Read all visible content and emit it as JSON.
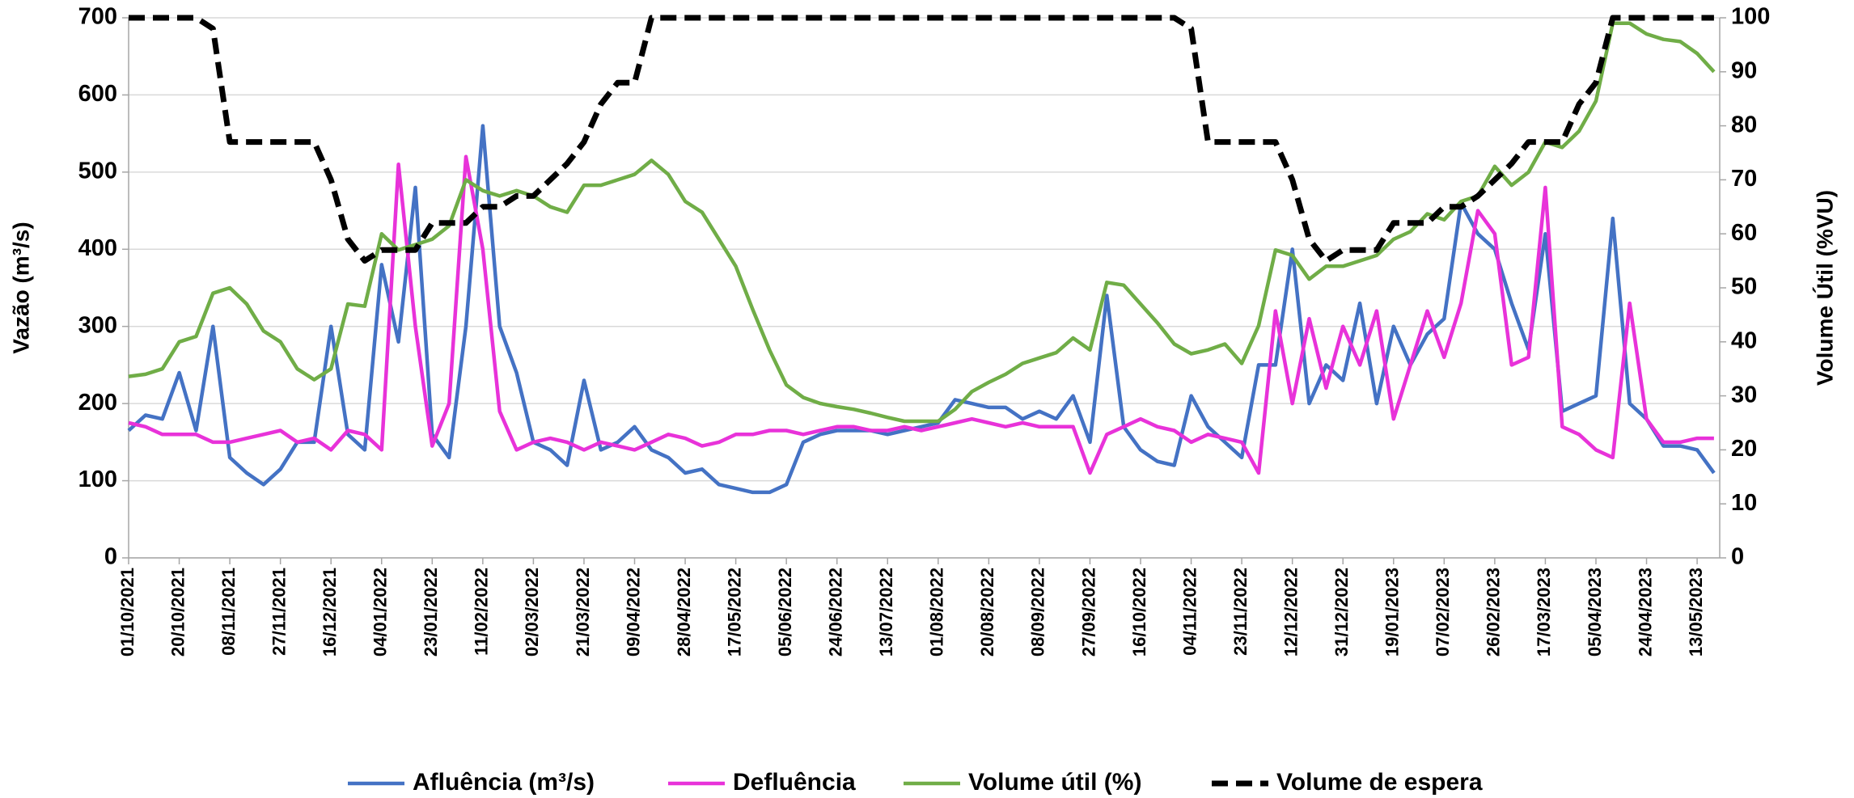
{
  "chart_data": {
    "type": "line",
    "categories": [
      "01/10/2021",
      null,
      null,
      "20/10/2021",
      null,
      null,
      "08/11/2021",
      null,
      null,
      "27/11/2021",
      null,
      null,
      "16/12/2021",
      null,
      null,
      "04/01/2022",
      null,
      null,
      "23/01/2022",
      null,
      null,
      "11/02/2022",
      null,
      null,
      "02/03/2022",
      null,
      null,
      "21/03/2022",
      null,
      null,
      "09/04/2022",
      null,
      null,
      "28/04/2022",
      null,
      null,
      "17/05/2022",
      null,
      null,
      "05/06/2022",
      null,
      null,
      "24/06/2022",
      null,
      null,
      "13/07/2022",
      null,
      null,
      "01/08/2022",
      null,
      null,
      "20/08/2022",
      null,
      null,
      "08/09/2022",
      null,
      null,
      "27/09/2022",
      null,
      null,
      "16/10/2022",
      null,
      null,
      "04/11/2022",
      null,
      null,
      "23/11/2022",
      null,
      null,
      "12/12/2022",
      null,
      null,
      "31/12/2022",
      null,
      null,
      "19/01/2023",
      null,
      null,
      "07/02/2023",
      null,
      null,
      "26/02/2023",
      null,
      null,
      "17/03/2023",
      null,
      null,
      "05/04/2023",
      null,
      null,
      "24/04/2023",
      null,
      null,
      "13/05/2023",
      null
    ],
    "series": [
      {
        "name": "Afluência (m³/s)",
        "color": "#4472c4",
        "axis": "y",
        "values": [
          165,
          185,
          180,
          240,
          165,
          300,
          130,
          110,
          95,
          115,
          150,
          150,
          300,
          160,
          140,
          380,
          280,
          480,
          160,
          130,
          300,
          560,
          300,
          240,
          150,
          140,
          120,
          230,
          140,
          150,
          170,
          140,
          130,
          110,
          115,
          95,
          90,
          85,
          85,
          95,
          150,
          160,
          165,
          165,
          165,
          160,
          165,
          170,
          175,
          205,
          200,
          195,
          195,
          180,
          190,
          180,
          210,
          150,
          340,
          170,
          140,
          125,
          120,
          210,
          170,
          150,
          130,
          250,
          250,
          400,
          200,
          250,
          230,
          330,
          200,
          300,
          250,
          290,
          310,
          460,
          420,
          400,
          330,
          270,
          420,
          190,
          200,
          210,
          440,
          200,
          180,
          145,
          145,
          140,
          110
        ]
      },
      {
        "name": "Defluência",
        "color": "#e832d9",
        "axis": "y",
        "values": [
          175,
          170,
          160,
          160,
          160,
          150,
          150,
          155,
          160,
          165,
          150,
          155,
          140,
          165,
          160,
          140,
          510,
          300,
          145,
          200,
          520,
          400,
          190,
          140,
          150,
          155,
          150,
          140,
          150,
          145,
          140,
          150,
          160,
          155,
          145,
          150,
          160,
          160,
          165,
          165,
          160,
          165,
          170,
          170,
          165,
          165,
          170,
          165,
          170,
          175,
          180,
          175,
          170,
          175,
          170,
          170,
          170,
          110,
          160,
          170,
          180,
          170,
          165,
          150,
          160,
          155,
          150,
          110,
          320,
          200,
          310,
          220,
          300,
          250,
          320,
          180,
          250,
          320,
          260,
          330,
          450,
          420,
          250,
          260,
          480,
          170,
          160,
          140,
          130,
          330,
          180,
          150,
          150,
          155,
          155
        ]
      },
      {
        "name": "Volume útil (%)",
        "color": "#70ad47",
        "axis": "y2",
        "values": [
          33.6,
          34,
          35,
          40,
          41,
          49,
          50,
          47,
          42,
          40,
          35,
          33,
          35,
          47,
          46.6,
          60,
          57,
          58,
          59,
          61.5,
          70,
          68,
          67,
          68,
          67,
          65,
          64,
          69,
          69,
          70,
          71,
          73.6,
          71,
          66,
          64,
          59,
          54,
          46,
          38.5,
          32,
          29.7,
          28.6,
          28,
          27.5,
          26.8,
          26,
          25.3,
          25.3,
          25.3,
          27.5,
          30.8,
          32.5,
          34,
          36,
          37,
          38,
          40.7,
          38.5,
          51,
          50.5,
          47,
          43.5,
          39.6,
          37.8,
          38.5,
          39.6,
          36,
          43,
          57,
          56,
          51.6,
          54,
          54,
          55,
          56,
          59,
          60.4,
          63.7,
          62.6,
          66,
          67,
          72.5,
          69,
          71.4,
          77,
          76,
          79,
          84.6,
          99,
          99,
          97,
          96,
          95.6,
          93.4,
          90
        ]
      },
      {
        "name": "Volume de espera",
        "color": "#000000",
        "axis": "y2",
        "dashed": true,
        "values": [
          100,
          100,
          100,
          100,
          100,
          98,
          77,
          77,
          77,
          77,
          77,
          77,
          70,
          59,
          55,
          57,
          57,
          57,
          62,
          62,
          62,
          65,
          65,
          67,
          67,
          70,
          73,
          77,
          84,
          88,
          88,
          100,
          100,
          100,
          100,
          100,
          100,
          100,
          100,
          100,
          100,
          100,
          100,
          100,
          100,
          100,
          100,
          100,
          100,
          100,
          100,
          100,
          100,
          100,
          100,
          100,
          100,
          100,
          100,
          100,
          100,
          100,
          100,
          98,
          77,
          77,
          77,
          77,
          77,
          70,
          59,
          55,
          57,
          57,
          57,
          62,
          62,
          62,
          65,
          65,
          67,
          70,
          73,
          77,
          77,
          77,
          84,
          88,
          100,
          100,
          100,
          100,
          100,
          100,
          100
        ]
      }
    ],
    "ylabel": "Vazão (m³/s)",
    "y2label": "Volume Útil (%VU)",
    "ylim": [
      0,
      700
    ],
    "yticks": [
      0,
      100,
      200,
      300,
      400,
      500,
      600,
      700
    ],
    "y2lim": [
      0,
      100
    ],
    "y2ticks": [
      0,
      10,
      20,
      30,
      40,
      50,
      60,
      70,
      80,
      90,
      100
    ],
    "grid": true,
    "legend": "bottom"
  }
}
